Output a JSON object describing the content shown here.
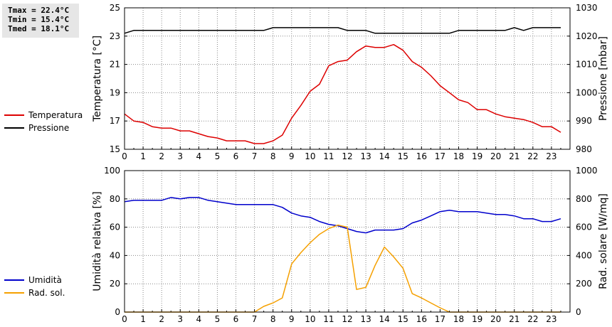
{
  "stats": {
    "tmax": "Tmax = 22.4°C",
    "tmin": "Tmin = 15.4°C",
    "tmed": "Tmed = 18.1°C"
  },
  "colors": {
    "temperature": "#dd0000",
    "pressure": "#000000",
    "humidity": "#0000cc",
    "radiation": "#f5a000",
    "grid": "#888888"
  },
  "chart_data": [
    {
      "type": "line",
      "ylabel": "Temperatura [°C]",
      "y2label": "Pressione [mbar]",
      "xlim": [
        0,
        24
      ],
      "ylim": [
        15,
        25
      ],
      "y2lim": [
        980,
        1030
      ],
      "x_ticks": [
        "0",
        "1",
        "2",
        "3",
        "4",
        "5",
        "6",
        "7",
        "8",
        "9",
        "10",
        "11",
        "12",
        "13",
        "14",
        "15",
        "16",
        "17",
        "18",
        "19",
        "20",
        "21",
        "22",
        "23"
      ],
      "y_ticks": [
        "15",
        "17",
        "19",
        "21",
        "23",
        "25"
      ],
      "y2_ticks": [
        "980",
        "990",
        "1000",
        "1010",
        "1020",
        "1030"
      ],
      "legend_position": "left",
      "grid": true,
      "series": [
        {
          "name": "Temperatura",
          "axis": "left",
          "x": [
            0,
            0.5,
            1,
            1.5,
            2,
            2.5,
            3,
            3.5,
            4,
            4.5,
            5,
            5.5,
            6,
            6.5,
            7,
            7.5,
            8,
            8.5,
            9,
            9.5,
            10,
            10.5,
            11,
            11.5,
            12,
            12.5,
            13,
            13.5,
            14,
            14.5,
            15,
            15.5,
            16,
            16.5,
            17,
            17.5,
            18,
            18.5,
            19,
            19.5,
            20,
            20.5,
            21,
            21.5,
            22,
            22.5,
            23,
            23.5
          ],
          "values": [
            17.5,
            17.0,
            16.9,
            16.6,
            16.5,
            16.5,
            16.3,
            16.3,
            16.1,
            15.9,
            15.8,
            15.6,
            15.6,
            15.6,
            15.4,
            15.4,
            15.6,
            16.0,
            17.2,
            18.1,
            19.1,
            19.6,
            20.9,
            21.2,
            21.3,
            21.9,
            22.3,
            22.2,
            22.2,
            22.4,
            22.0,
            21.2,
            20.8,
            20.2,
            19.5,
            19.0,
            18.5,
            18.3,
            17.8,
            17.8,
            17.5,
            17.3,
            17.2,
            17.1,
            16.9,
            16.6,
            16.6,
            16.2
          ]
        },
        {
          "name": "Pressione",
          "axis": "right",
          "x": [
            0,
            0.5,
            1,
            7.5,
            8,
            11.5,
            12,
            13,
            13.5,
            17.5,
            18,
            20.5,
            21,
            21.5,
            22,
            23.5
          ],
          "values": [
            1021,
            1022,
            1022,
            1022,
            1023,
            1023,
            1022,
            1022,
            1021,
            1021,
            1022,
            1022,
            1023,
            1022,
            1023,
            1023
          ]
        }
      ]
    },
    {
      "type": "line",
      "ylabel": "Umidità relativa [%]",
      "y2label": "Rad. solare [W/mq]",
      "xlim": [
        0,
        24
      ],
      "ylim": [
        0,
        100
      ],
      "y2lim": [
        0,
        1000
      ],
      "x_ticks": [
        "0",
        "1",
        "2",
        "3",
        "4",
        "5",
        "6",
        "7",
        "8",
        "9",
        "10",
        "11",
        "12",
        "13",
        "14",
        "15",
        "16",
        "17",
        "18",
        "19",
        "20",
        "21",
        "22",
        "23"
      ],
      "y_ticks": [
        "0",
        "20",
        "40",
        "60",
        "80",
        "100"
      ],
      "y2_ticks": [
        "0",
        "200",
        "400",
        "600",
        "800",
        "1000"
      ],
      "legend_position": "left",
      "grid": true,
      "series": [
        {
          "name": "Umidità",
          "axis": "left",
          "x": [
            0,
            0.5,
            1,
            1.5,
            2,
            2.5,
            3,
            3.5,
            4,
            4.5,
            5,
            5.5,
            6,
            6.5,
            7,
            7.5,
            8,
            8.5,
            9,
            9.5,
            10,
            10.5,
            11,
            11.5,
            12,
            12.5,
            13,
            13.5,
            14,
            14.5,
            15,
            15.5,
            16,
            16.5,
            17,
            17.5,
            18,
            18.5,
            19,
            19.5,
            20,
            20.5,
            21,
            21.5,
            22,
            22.5,
            23,
            23.5
          ],
          "values": [
            78,
            79,
            79,
            79,
            79,
            81,
            80,
            81,
            81,
            79,
            78,
            77,
            76,
            76,
            76,
            76,
            76,
            74,
            70,
            68,
            67,
            64,
            62,
            61,
            59,
            57,
            56,
            58,
            58,
            58,
            59,
            63,
            65,
            68,
            71,
            72,
            71,
            71,
            71,
            70,
            69,
            69,
            68,
            66,
            66,
            64,
            64,
            66
          ]
        },
        {
          "name": "Rad. sol.",
          "axis": "right",
          "x": [
            0,
            1,
            2,
            3,
            4,
            5,
            6,
            7,
            7.5,
            8,
            8.5,
            9,
            9.5,
            10,
            10.5,
            11,
            11.5,
            12,
            12.5,
            13,
            13.5,
            14,
            14.5,
            15,
            15.5,
            16,
            16.5,
            17,
            17.5,
            18,
            19,
            20,
            21,
            22,
            23,
            23.5
          ],
          "values": [
            0,
            0,
            0,
            0,
            0,
            0,
            0,
            0,
            40,
            65,
            100,
            340,
            420,
            490,
            550,
            590,
            615,
            600,
            160,
            175,
            330,
            460,
            390,
            310,
            130,
            100,
            65,
            30,
            0,
            0,
            0,
            0,
            0,
            0,
            0,
            0
          ]
        }
      ]
    }
  ]
}
